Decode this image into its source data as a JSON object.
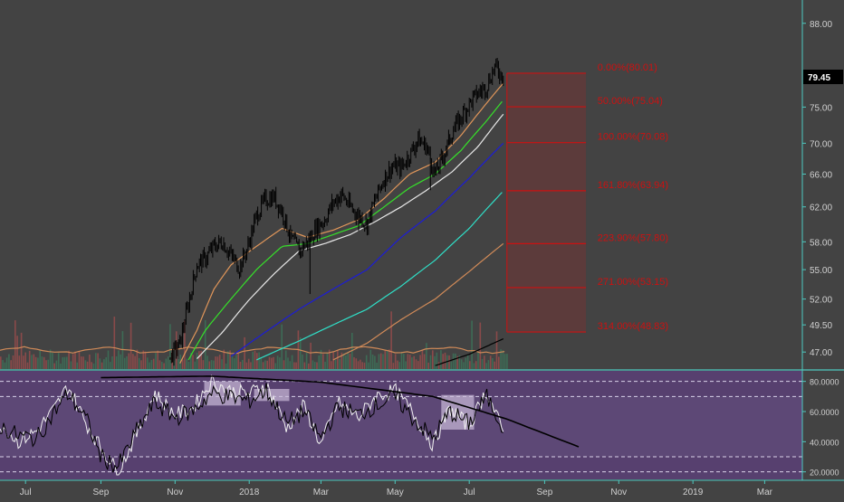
{
  "colors": {
    "background": "#434343",
    "axis_line": "#4ec9c0",
    "price_line": "#000000",
    "ema_orange": "#e0965a",
    "ema_green": "#36e02a",
    "ema_white": "#e8e8e8",
    "ema_blue": "#1c1cd6",
    "ema_cyan": "#2fe0c8",
    "ema_slow": "#d08a58",
    "fib_red": "#cc1111",
    "fib_fill": "#6a3838",
    "rsi_bg": "#57406f",
    "rsi_line_black": "#000000",
    "rsi_line_white": "#f0f0f0",
    "volume_green": "#3d6b55",
    "volume_red": "#8a4a4a",
    "last_price_bg": "#000000"
  },
  "chart_data": [
    {
      "type": "line",
      "name_role": "price-pane",
      "y_axis_scale": "log",
      "ylim": [
        45.5,
        92
      ],
      "y_ticks": [
        "88.00",
        "75.00",
        "70.00",
        "66.00",
        "62.00",
        "58.00",
        "55.00",
        "52.00",
        "49.50",
        "47.00"
      ],
      "y_tick_values": [
        88,
        75,
        70,
        66,
        62,
        58,
        55,
        52,
        49.5,
        47
      ],
      "last_price_label": "79.45",
      "last_price": 79.45,
      "x_tick_labels": [
        "Jul",
        "Sep",
        "Nov",
        "2018",
        "Mar",
        "May",
        "Jul",
        "Sep",
        "Nov",
        "2019",
        "Mar"
      ],
      "x_tick_dates": [
        "2017-07-01",
        "2017-09-01",
        "2017-11-01",
        "2018-01-01",
        "2018-03-01",
        "2018-05-01",
        "2018-07-01",
        "2018-09-01",
        "2018-11-01",
        "2019-01-01",
        "2019-03-01"
      ],
      "xlim": [
        "2017-06-10",
        "2019-04-01"
      ],
      "price_series": {
        "dates": [
          "2017-10-28",
          "2017-11-05",
          "2017-11-12",
          "2017-11-19",
          "2017-11-26",
          "2017-12-03",
          "2017-12-10",
          "2017-12-17",
          "2017-12-24",
          "2017-12-31",
          "2018-01-07",
          "2018-01-14",
          "2018-01-21",
          "2018-01-28",
          "2018-02-04",
          "2018-02-11",
          "2018-02-18",
          "2018-02-25",
          "2018-03-04",
          "2018-03-11",
          "2018-03-18",
          "2018-03-25",
          "2018-04-01",
          "2018-04-08",
          "2018-04-15",
          "2018-04-22",
          "2018-04-29",
          "2018-05-06",
          "2018-05-13",
          "2018-05-20",
          "2018-05-27",
          "2018-06-03",
          "2018-06-10",
          "2018-06-17",
          "2018-06-24",
          "2018-07-01",
          "2018-07-08",
          "2018-07-15",
          "2018-07-22",
          "2018-07-29"
        ],
        "values": [
          46.5,
          47.8,
          51.5,
          55.5,
          56.2,
          57.5,
          58.0,
          56.5,
          55.2,
          57.5,
          61.0,
          62.8,
          63.2,
          61.5,
          58.5,
          57.0,
          58.0,
          59.5,
          60.5,
          62.5,
          63.5,
          62.0,
          61.0,
          60.0,
          63.0,
          65.5,
          67.0,
          66.8,
          68.5,
          70.5,
          69.5,
          66.0,
          68.5,
          71.5,
          73.5,
          75.5,
          77.0,
          78.0,
          81.0,
          79.5
        ]
      },
      "emas": [
        {
          "role": "orange",
          "dates": [
            "2017-11-05",
            "2017-11-19",
            "2017-12-03",
            "2017-12-17",
            "2018-01-07",
            "2018-01-28",
            "2018-02-18",
            "2018-03-11",
            "2018-04-01",
            "2018-04-22",
            "2018-05-13",
            "2018-06-03",
            "2018-06-24",
            "2018-07-15",
            "2018-07-29"
          ],
          "values": [
            46.0,
            49.0,
            53.0,
            55.5,
            57.5,
            59.5,
            58.5,
            59.3,
            60.5,
            63.0,
            66.0,
            67.5,
            71.0,
            75.5,
            78.5
          ]
        },
        {
          "role": "green",
          "dates": [
            "2017-11-12",
            "2017-11-26",
            "2017-12-17",
            "2018-01-07",
            "2018-01-28",
            "2018-02-18",
            "2018-03-11",
            "2018-04-01",
            "2018-04-22",
            "2018-05-13",
            "2018-06-03",
            "2018-06-24",
            "2018-07-15",
            "2018-07-29"
          ],
          "values": [
            46.3,
            49.0,
            52.0,
            55.0,
            57.5,
            57.8,
            58.8,
            59.8,
            62.0,
            64.3,
            66.0,
            69.0,
            73.0,
            76.0
          ]
        },
        {
          "role": "white",
          "dates": [
            "2017-11-19",
            "2017-12-10",
            "2017-12-31",
            "2018-01-21",
            "2018-02-11",
            "2018-03-04",
            "2018-03-25",
            "2018-04-15",
            "2018-05-06",
            "2018-05-27",
            "2018-06-17",
            "2018-07-08",
            "2018-07-29"
          ],
          "values": [
            46.4,
            48.8,
            51.8,
            54.5,
            57.0,
            57.8,
            58.8,
            60.3,
            62.0,
            64.0,
            66.3,
            69.5,
            74.0
          ]
        },
        {
          "role": "blue",
          "dates": [
            "2017-12-17",
            "2018-01-14",
            "2018-02-11",
            "2018-03-11",
            "2018-04-08",
            "2018-05-06",
            "2018-06-03",
            "2018-07-01",
            "2018-07-29"
          ],
          "values": [
            46.6,
            48.8,
            51.0,
            53.0,
            55.0,
            58.5,
            61.5,
            65.5,
            70.0
          ]
        },
        {
          "role": "cyan",
          "dates": [
            "2018-01-07",
            "2018-02-11",
            "2018-03-11",
            "2018-04-08",
            "2018-05-06",
            "2018-06-03",
            "2018-07-01",
            "2018-07-29"
          ],
          "values": [
            46.3,
            48.0,
            49.5,
            51.0,
            53.3,
            56.0,
            59.5,
            63.9
          ]
        },
        {
          "role": "slow",
          "dates": [
            "2018-03-11",
            "2018-04-08",
            "2018-05-06",
            "2018-06-03",
            "2018-07-01",
            "2018-07-29"
          ],
          "values": [
            46.3,
            47.8,
            50.0,
            52.0,
            54.8,
            57.8
          ]
        },
        {
          "role": "black",
          "dates": [
            "2018-06-03",
            "2018-07-01",
            "2018-07-29"
          ],
          "values": [
            45.8,
            46.8,
            48.2
          ]
        }
      ],
      "volume": {
        "note": "volume histogram behind price, bars only drawn visually",
        "avg_line_color": "#d08a58"
      },
      "fib_levels": [
        {
          "label": "0.00%(80.01)",
          "value": 80.01
        },
        {
          "label": "50.00%(75.04)",
          "value": 75.04
        },
        {
          "label": "100.00%(70.08)",
          "value": 70.08
        },
        {
          "label": "161.80%(63.94)",
          "value": 63.94
        },
        {
          "label": "223.90%(57.80)",
          "value": 57.8
        },
        {
          "label": "271.00%(53.15)",
          "value": 53.15
        },
        {
          "label": "314.00%(48.83)",
          "value": 48.83
        }
      ],
      "fib_range_dates": [
        "2018-08-01",
        "2018-10-05"
      ]
    },
    {
      "type": "line",
      "name_role": "rsi-pane",
      "ylim": [
        15,
        87
      ],
      "y_ticks": [
        "80.0000",
        "60.0000",
        "40.0000",
        "20.0000"
      ],
      "y_tick_values": [
        80,
        60,
        40,
        20
      ],
      "band_lines": [
        80,
        70,
        30,
        20
      ],
      "rsi_series": {
        "dates": [
          "2017-06-10",
          "2017-06-25",
          "2017-07-10",
          "2017-07-25",
          "2017-08-05",
          "2017-08-20",
          "2017-09-01",
          "2017-09-15",
          "2017-10-01",
          "2017-10-15",
          "2017-11-01",
          "2017-11-15",
          "2017-12-01",
          "2017-12-15",
          "2018-01-01",
          "2018-01-15",
          "2018-02-01",
          "2018-02-15",
          "2018-03-01",
          "2018-03-15",
          "2018-04-01",
          "2018-04-15",
          "2018-05-01",
          "2018-05-15",
          "2018-06-01",
          "2018-06-15",
          "2018-07-01",
          "2018-07-15",
          "2018-07-29"
        ],
        "values": [
          50,
          44,
          42,
          60,
          72,
          55,
          30,
          23,
          48,
          66,
          56,
          60,
          72,
          70,
          67,
          74,
          52,
          60,
          42,
          63,
          58,
          64,
          70,
          56,
          42,
          60,
          52,
          70,
          50
        ]
      },
      "rsi_series_b": {
        "dates": [
          "2017-06-10",
          "2017-06-25",
          "2017-07-10",
          "2017-07-25",
          "2017-08-05",
          "2017-08-20",
          "2017-09-01",
          "2017-09-15",
          "2017-10-01",
          "2017-10-15",
          "2017-11-01",
          "2017-11-15",
          "2017-12-01",
          "2017-12-15",
          "2018-01-01",
          "2018-01-15",
          "2018-02-01",
          "2018-02-15",
          "2018-03-01",
          "2018-03-15",
          "2018-04-01",
          "2018-04-15",
          "2018-05-01",
          "2018-05-15",
          "2018-06-01",
          "2018-06-15",
          "2018-07-01",
          "2018-07-15",
          "2018-07-29"
        ],
        "values": [
          52,
          40,
          47,
          62,
          77,
          52,
          36,
          20,
          46,
          72,
          58,
          62,
          80,
          74,
          72,
          78,
          49,
          64,
          38,
          66,
          56,
          70,
          74,
          60,
          38,
          62,
          50,
          74,
          46
        ]
      },
      "highlight_boxes": [
        {
          "dates": [
            "2017-11-25",
            "2017-12-25"
          ],
          "range": [
            64,
            80
          ]
        },
        {
          "dates": [
            "2018-01-05",
            "2018-02-03"
          ],
          "range": [
            67,
            75
          ]
        },
        {
          "dates": [
            "2018-06-08",
            "2018-07-05"
          ],
          "range": [
            48,
            71
          ]
        }
      ],
      "trend_curve": {
        "dates": [
          "2017-09-01",
          "2017-12-01",
          "2018-03-01",
          "2018-06-01",
          "2018-08-01",
          "2018-10-01"
        ],
        "values": [
          82.5,
          83.5,
          79.5,
          70.0,
          55.0,
          36.0
        ]
      }
    }
  ]
}
